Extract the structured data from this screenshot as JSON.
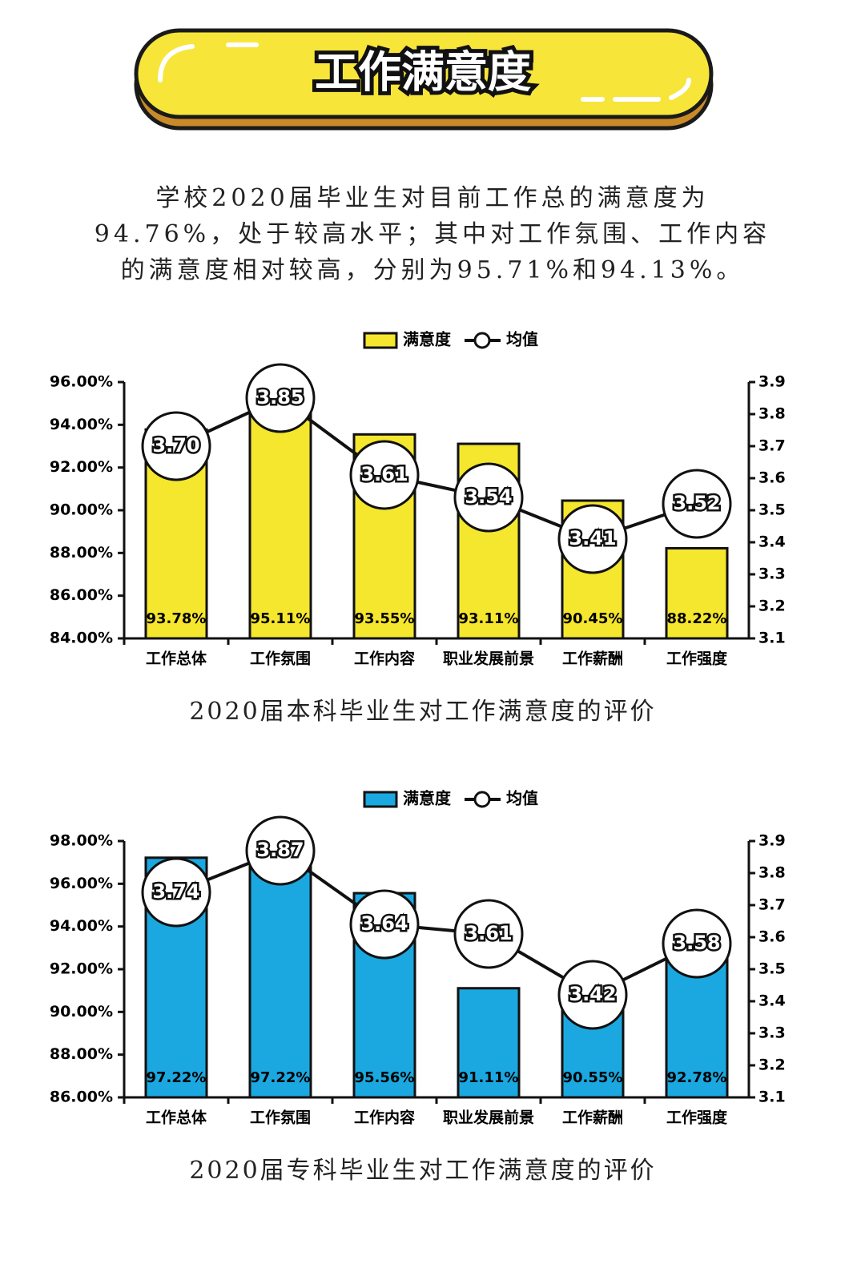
{
  "header": {
    "title": "工作满意度"
  },
  "intro": {
    "lines": [
      "学校2020届毕业生对目前工作总的满意度为",
      "94.76%，处于较高水平；其中对工作氛围、工作内容",
      "的满意度相对较高，分别为95.71%和94.13%。"
    ]
  },
  "chart_data": [
    {
      "type": "bar",
      "title": "2020届本科毕业生对工作满意度的评价",
      "categories": [
        "工作总体",
        "工作氛围",
        "工作内容",
        "职业发展前景",
        "工作薪酬",
        "工作强度"
      ],
      "series": [
        {
          "name": "满意度",
          "type": "bar",
          "color": "#f5e62e",
          "values": [
            93.78,
            95.11,
            93.55,
            93.11,
            90.45,
            88.22
          ],
          "value_labels": [
            "93.78%",
            "95.11%",
            "93.55%",
            "93.11%",
            "90.45%",
            "88.22%"
          ]
        },
        {
          "name": "均值",
          "type": "line",
          "axis": "y2",
          "color": "#111111",
          "values": [
            3.7,
            3.85,
            3.61,
            3.54,
            3.41,
            3.52
          ],
          "value_labels": [
            "3.70",
            "3.85",
            "3.61",
            "3.54",
            "3.41",
            "3.52"
          ]
        }
      ],
      "ylim": [
        84,
        96
      ],
      "yticks": [
        {
          "value": 84,
          "label": "84.00%"
        },
        {
          "value": 86,
          "label": "86.00%"
        },
        {
          "value": 88,
          "label": "88.00%"
        },
        {
          "value": 90,
          "label": "90.00%"
        },
        {
          "value": 92,
          "label": "92.00%"
        },
        {
          "value": 94,
          "label": "94.00%"
        },
        {
          "value": 96,
          "label": "96.00%"
        }
      ],
      "y2lim": [
        3.1,
        3.9
      ],
      "y2ticks": [
        3.1,
        3.2,
        3.3,
        3.4,
        3.5,
        3.6,
        3.7,
        3.8,
        3.9
      ],
      "legend": "top"
    },
    {
      "type": "bar",
      "title": "2020届专科毕业生对工作满意度的评价",
      "categories": [
        "工作总体",
        "工作氛围",
        "工作内容",
        "职业发展前景",
        "工作薪酬",
        "工作强度"
      ],
      "series": [
        {
          "name": "满意度",
          "type": "bar",
          "color": "#1ba8e0",
          "values": [
            97.22,
            97.22,
            95.56,
            91.11,
            90.55,
            92.78
          ],
          "value_labels": [
            "97.22%",
            "97.22%",
            "95.56%",
            "91.11%",
            "90.55%",
            "92.78%"
          ]
        },
        {
          "name": "均值",
          "type": "line",
          "axis": "y2",
          "color": "#111111",
          "values": [
            3.74,
            3.87,
            3.64,
            3.61,
            3.42,
            3.58
          ],
          "value_labels": [
            "3.74",
            "3.87",
            "3.64",
            "3.61",
            "3.42",
            "3.58"
          ]
        }
      ],
      "ylim": [
        86,
        98
      ],
      "yticks": [
        {
          "value": 86,
          "label": "86.00%"
        },
        {
          "value": 88,
          "label": "88.00%"
        },
        {
          "value": 90,
          "label": "90.00%"
        },
        {
          "value": 92,
          "label": "92.00%"
        },
        {
          "value": 94,
          "label": "94.00%"
        },
        {
          "value": 96,
          "label": "96.00%"
        },
        {
          "value": 98,
          "label": "98.00%"
        }
      ],
      "y2lim": [
        3.1,
        3.9
      ],
      "y2ticks": [
        3.1,
        3.2,
        3.3,
        3.4,
        3.5,
        3.6,
        3.7,
        3.8,
        3.9
      ],
      "legend": "top"
    }
  ]
}
